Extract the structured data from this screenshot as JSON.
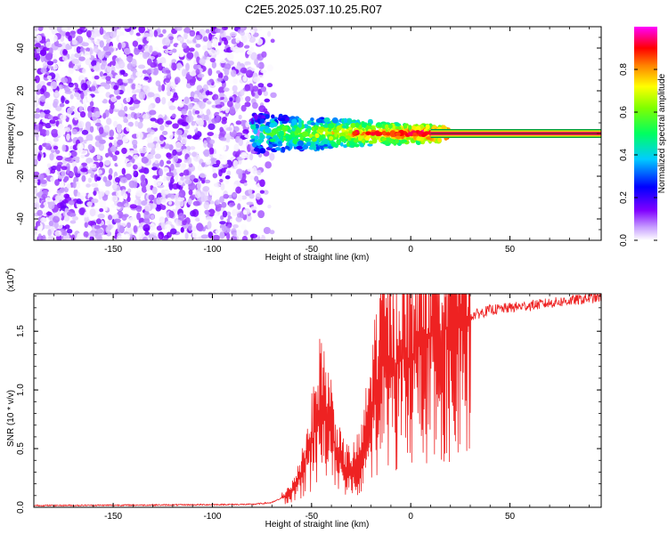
{
  "figure_title": "C2E5.2025.037.10.25.R07",
  "chart_data": [
    {
      "type": "heatmap",
      "title": "",
      "xlabel": "Height of straight line (km)",
      "ylabel": "Frequency (Hz)",
      "xlim": [
        -190,
        96
      ],
      "ylim": [
        -50,
        50
      ],
      "xticks": [
        -150,
        -100,
        -50,
        0,
        50
      ],
      "yticks": [
        -40,
        -20,
        0,
        20,
        40
      ],
      "colorbar": {
        "label": "Normalized spectral amplitude",
        "range": [
          0,
          1
        ],
        "ticks": [
          "0.0",
          "0.2",
          "0.4",
          "0.6",
          "0.8"
        ],
        "colormap": [
          "#ffffff",
          "#8000ff",
          "#0000ff",
          "#00ffff",
          "#00ff00",
          "#ffff00",
          "#ff8000",
          "#ff0000",
          "#ff00ff"
        ]
      },
      "regions": [
        {
          "x_range": [
            -190,
            -70
          ],
          "freq_band": [
            -50,
            50
          ],
          "amplitude": "low (noise, 0.0-0.2)"
        },
        {
          "x_range": [
            -80,
            20
          ],
          "freq_band": [
            -10,
            10
          ],
          "amplitude": "rising (0.2-0.6)"
        },
        {
          "x_range": [
            -20,
            96
          ],
          "freq_center": 0,
          "amplitude": "high (0.8-1.0)"
        }
      ],
      "grid": false
    },
    {
      "type": "line",
      "title": "",
      "xlabel": "Height of straight line (km)",
      "ylabel": "SNR (10 * v/v)",
      "yscale_label": "(x10",
      "yscale_exp": "4",
      "xlim": [
        -190,
        96
      ],
      "ylim": [
        0,
        18200
      ],
      "xticks": [
        -150,
        -100,
        -50,
        0,
        50
      ],
      "yticks": [
        "0.0",
        "0.5",
        "1.0",
        "1.5"
      ],
      "line_color": "#ee2222",
      "series": [
        {
          "x": [
            -190,
            -120,
            -80,
            -70,
            -60,
            -55,
            -50,
            -45,
            -40,
            -35,
            -30,
            -25,
            -20,
            -15,
            -10,
            -5,
            0,
            5,
            10,
            15,
            20,
            25,
            30,
            40,
            50,
            60,
            70,
            80,
            90,
            96
          ],
          "y": [
            150,
            200,
            250,
            400,
            1200,
            3000,
            5500,
            9000,
            6500,
            3500,
            3000,
            4000,
            8000,
            12500,
            11500,
            13000,
            12500,
            14000,
            14500,
            15000,
            15300,
            15800,
            16300,
            16800,
            17000,
            17200,
            17400,
            17600,
            17800,
            17900
          ]
        }
      ],
      "grid": false
    }
  ]
}
